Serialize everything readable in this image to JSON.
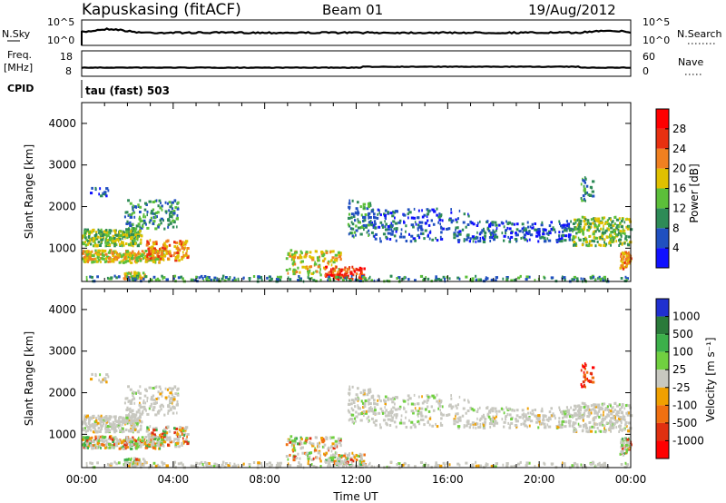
{
  "header": {
    "station": "Kapuskasing (fitACF)",
    "beam": "Beam 01",
    "date": "19/Aug/2012"
  },
  "status_panels": {
    "nsky_label": "N.Sky",
    "nsearch_label": "N.Search",
    "freq_label_line1": "Freq.",
    "freq_label_line2": "[MHz]",
    "nave_label": "Nave",
    "cpid_label": "CPID",
    "noise_left_ticks": [
      "10^5",
      "10^0"
    ],
    "noise_right_ticks": [
      "10^5",
      "10^0"
    ],
    "freq_left_ticks": [
      "18",
      "8"
    ],
    "freq_right_ticks": [
      "60",
      "0"
    ],
    "cpid_text": "tau (fast) 503"
  },
  "chart_data": [
    {
      "type": "heatmap",
      "name": "power",
      "ylabel": "Slant Range [km]",
      "yticks": [
        "1000",
        "2000",
        "3000",
        "4000"
      ],
      "ylim": [
        200,
        4500
      ],
      "xlim": [
        0,
        24
      ],
      "colorbar_label": "Power [dB]",
      "colorbar_ticks": [
        "4",
        "8",
        "12",
        "16",
        "20",
        "24",
        "28"
      ],
      "colors": [
        "#1010ff",
        "#2050c0",
        "#2e8b57",
        "#5cbf3a",
        "#e0c000",
        "#f08020",
        "#e83010",
        "#ff0000"
      ]
    },
    {
      "type": "heatmap",
      "name": "velocity",
      "ylabel": "Slant Range [km]",
      "yticks": [
        "1000",
        "2000",
        "3000",
        "4000"
      ],
      "ylim": [
        200,
        4500
      ],
      "xlim": [
        0,
        24
      ],
      "xlabel": "Time UT",
      "xticks": [
        "00:00",
        "04:00",
        "08:00",
        "12:00",
        "16:00",
        "20:00",
        "00:00"
      ],
      "colorbar_label": "Velocity [m s⁻¹]",
      "colorbar_ticks": [
        "1000",
        "500",
        "100",
        "25",
        "-25",
        "-100",
        "-500",
        "-1000"
      ],
      "colors": [
        "#2030d0",
        "#2a7a3a",
        "#3cb04a",
        "#70d040",
        "#c8c8c0",
        "#f0a000",
        "#f07010",
        "#e03010",
        "#ff0000"
      ]
    }
  ]
}
